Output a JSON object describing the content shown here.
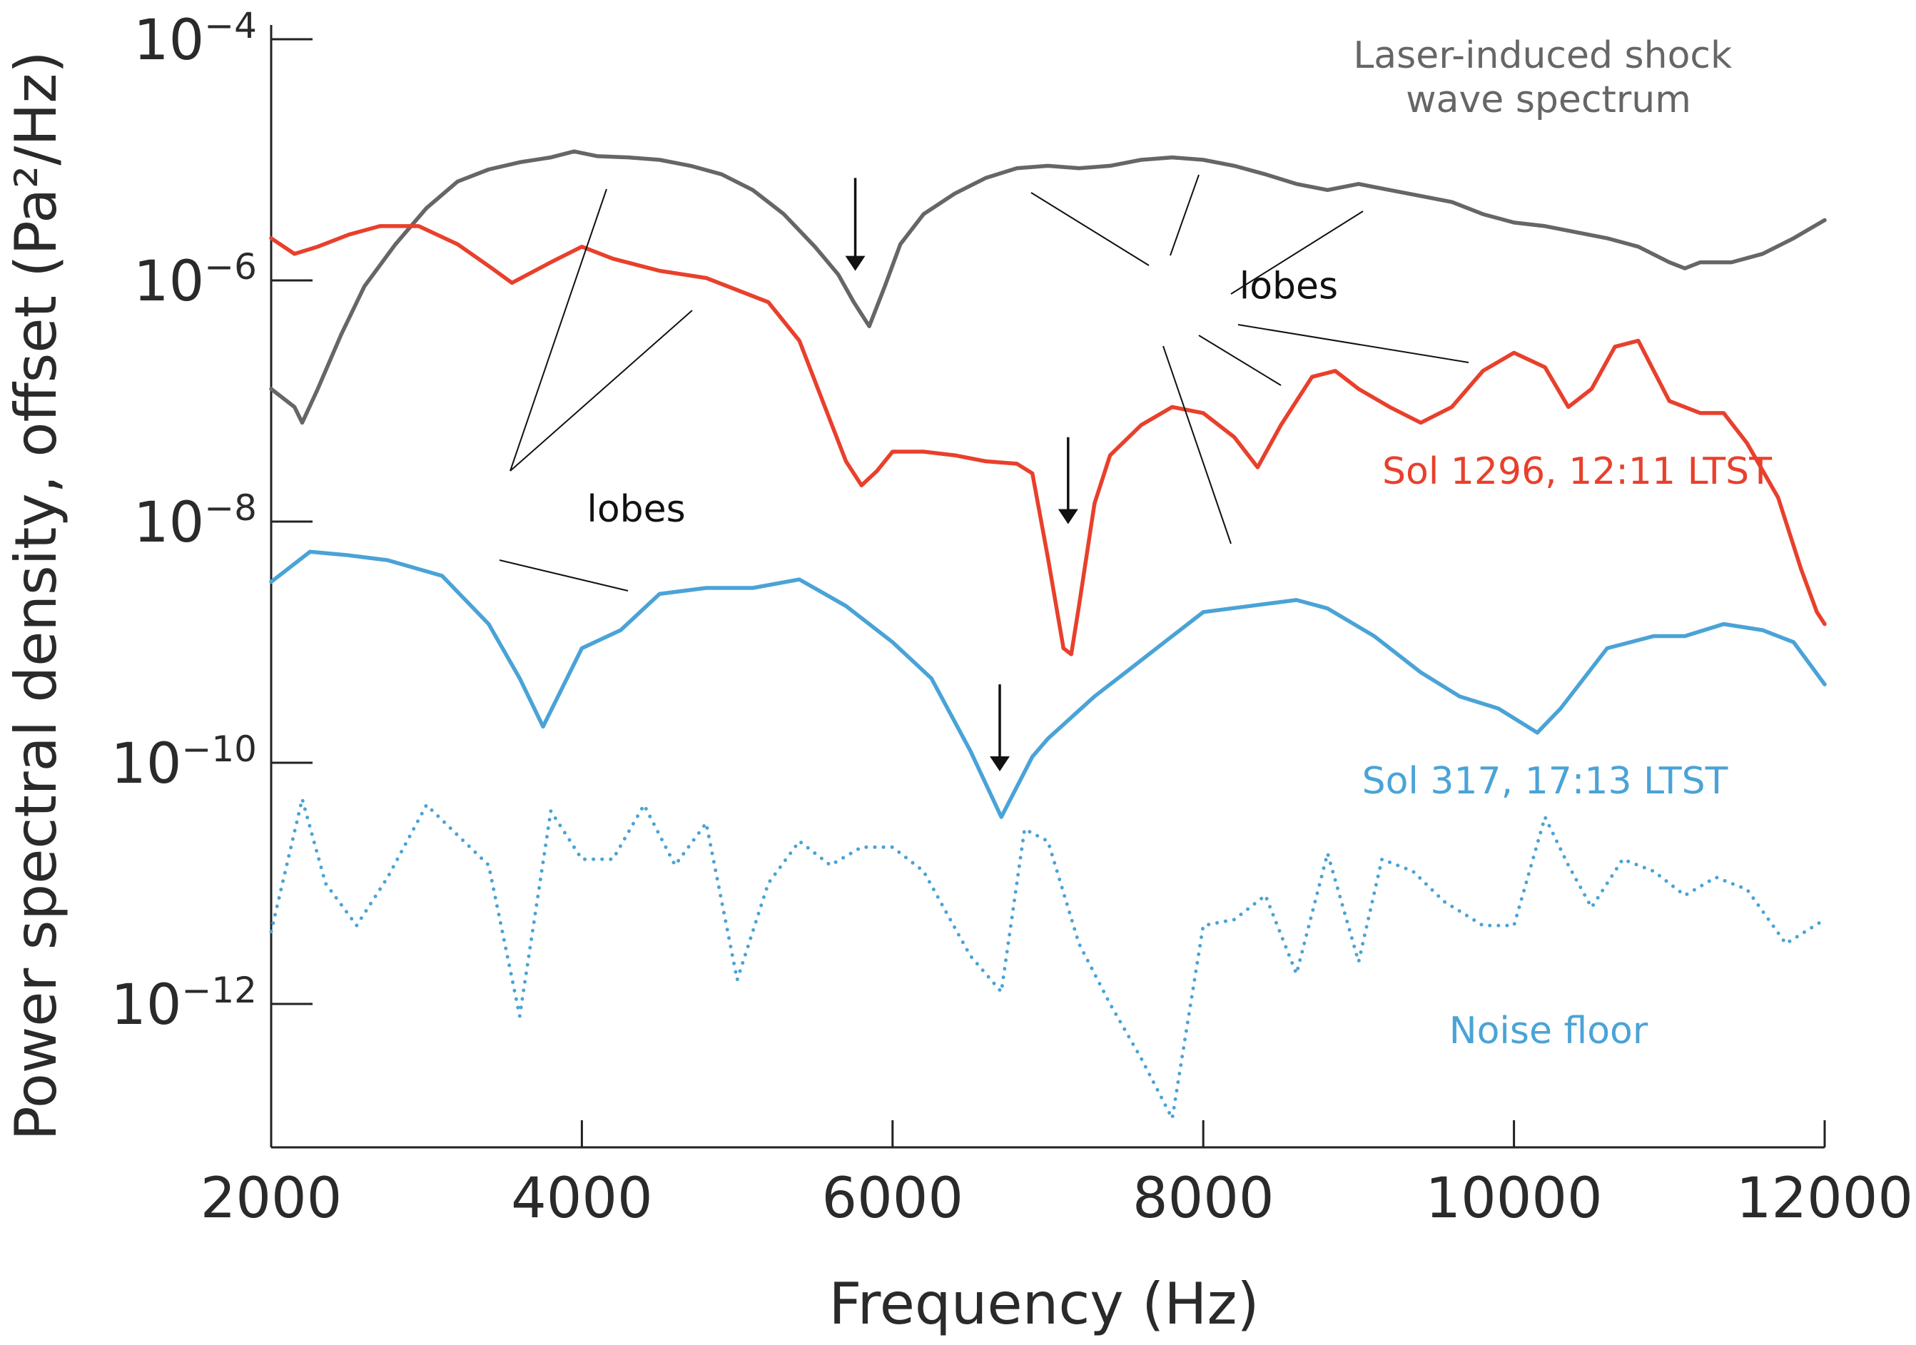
{
  "chart_data": {
    "type": "line",
    "title": "",
    "xlabel": "Frequency (Hz)",
    "ylabel": "Power spectral density, offset (Pa²/Hz)",
    "xlim": [
      2000,
      12000
    ],
    "ylim_log10": [
      -13.4,
      -4
    ],
    "x_ticks": [
      {
        "value": 2000,
        "label": "2000"
      },
      {
        "value": 4000,
        "label": "4000"
      },
      {
        "value": 6000,
        "label": "6000"
      },
      {
        "value": 8000,
        "label": "8000"
      },
      {
        "value": 10000,
        "label": "10000"
      },
      {
        "value": 12000,
        "label": "12000"
      }
    ],
    "y_ticks": [
      {
        "exp": -4,
        "base": "10",
        "sup": "−4"
      },
      {
        "exp": -6,
        "base": "10",
        "sup": "−6"
      },
      {
        "exp": -8,
        "base": "10",
        "sup": "−8"
      },
      {
        "exp": -10,
        "base": "10",
        "sup": "−10"
      },
      {
        "exp": -12,
        "base": "10",
        "sup": "−12"
      }
    ],
    "series": [
      {
        "name": "Laser-induced shock wave spectrum",
        "name_lines": [
          "Laser-induced shock",
          "wave spectrum"
        ],
        "color": "#666666",
        "style": "solid",
        "x": [
          2000,
          2150,
          2200,
          2300,
          2450,
          2600,
          2800,
          3000,
          3200,
          3400,
          3600,
          3800,
          3950,
          4100,
          4300,
          4500,
          4700,
          4900,
          5100,
          5300,
          5500,
          5650,
          5750,
          5850,
          5950,
          6050,
          6200,
          6400,
          6600,
          6800,
          7000,
          7200,
          7400,
          7600,
          7800,
          8000,
          8200,
          8400,
          8600,
          8800,
          9000,
          9200,
          9400,
          9600,
          9800,
          10000,
          10200,
          10400,
          10600,
          10800,
          11000,
          11100,
          11200,
          11400,
          11600,
          11800,
          12000
        ],
        "log10": [
          -6.9,
          -7.05,
          -7.18,
          -6.9,
          -6.45,
          -6.05,
          -5.7,
          -5.4,
          -5.18,
          -5.08,
          -5.02,
          -4.98,
          -4.93,
          -4.97,
          -4.98,
          -5.0,
          -5.05,
          -5.12,
          -5.25,
          -5.45,
          -5.72,
          -5.95,
          -6.18,
          -6.38,
          -6.05,
          -5.7,
          -5.45,
          -5.28,
          -5.15,
          -5.07,
          -5.05,
          -5.07,
          -5.05,
          -5.0,
          -4.98,
          -5.0,
          -5.05,
          -5.12,
          -5.2,
          -5.25,
          -5.2,
          -5.25,
          -5.3,
          -5.35,
          -5.45,
          -5.52,
          -5.55,
          -5.6,
          -5.65,
          -5.72,
          -5.85,
          -5.9,
          -5.85,
          -5.85,
          -5.78,
          -5.65,
          -5.5
        ]
      },
      {
        "name": "Sol 1296, 12:11 LTST",
        "color": "#e8402c",
        "style": "solid",
        "x": [
          2000,
          2150,
          2300,
          2500,
          2700,
          2950,
          3200,
          3400,
          3550,
          3800,
          4000,
          4200,
          4500,
          4800,
          5000,
          5200,
          5400,
          5550,
          5700,
          5800,
          5900,
          6000,
          6200,
          6400,
          6600,
          6800,
          6900,
          7000,
          7100,
          7150,
          7200,
          7300,
          7400,
          7600,
          7800,
          8000,
          8200,
          8350,
          8500,
          8700,
          8850,
          9000,
          9200,
          9400,
          9600,
          9800,
          10000,
          10200,
          10350,
          10500,
          10650,
          10800,
          11000,
          11200,
          11350,
          11500,
          11700,
          11850,
          11950,
          12000
        ],
        "log10": [
          -5.65,
          -5.78,
          -5.72,
          -5.62,
          -5.55,
          -5.55,
          -5.7,
          -5.88,
          -6.02,
          -5.85,
          -5.72,
          -5.82,
          -5.92,
          -5.98,
          -6.08,
          -6.18,
          -6.5,
          -7.0,
          -7.5,
          -7.7,
          -7.58,
          -7.42,
          -7.42,
          -7.45,
          -7.5,
          -7.52,
          -7.6,
          -8.3,
          -9.05,
          -9.1,
          -8.7,
          -7.85,
          -7.45,
          -7.2,
          -7.05,
          -7.1,
          -7.3,
          -7.55,
          -7.2,
          -6.8,
          -6.75,
          -6.9,
          -7.05,
          -7.18,
          -7.05,
          -6.75,
          -6.6,
          -6.72,
          -7.05,
          -6.9,
          -6.55,
          -6.5,
          -7.0,
          -7.1,
          -7.1,
          -7.35,
          -7.8,
          -8.4,
          -8.75,
          -8.85
        ]
      },
      {
        "name": "Sol 317, 17:13 LTST",
        "color": "#4aa3d6",
        "style": "solid",
        "x": [
          2000,
          2250,
          2500,
          2750,
          3100,
          3400,
          3600,
          3750,
          4000,
          4250,
          4500,
          4800,
          5100,
          5400,
          5700,
          6000,
          6250,
          6500,
          6700,
          6900,
          7000,
          7300,
          7500,
          7750,
          8000,
          8300,
          8600,
          8800,
          9100,
          9400,
          9650,
          9900,
          10150,
          10300,
          10600,
          10900,
          11100,
          11350,
          11600,
          11800,
          12000
        ],
        "log10": [
          -8.5,
          -8.25,
          -8.28,
          -8.32,
          -8.45,
          -8.85,
          -9.3,
          -9.7,
          -9.05,
          -8.9,
          -8.6,
          -8.55,
          -8.55,
          -8.48,
          -8.7,
          -9.0,
          -9.3,
          -9.9,
          -10.45,
          -9.95,
          -9.8,
          -9.45,
          -9.25,
          -9.0,
          -8.75,
          -8.7,
          -8.65,
          -8.72,
          -8.95,
          -9.25,
          -9.45,
          -9.55,
          -9.75,
          -9.55,
          -9.05,
          -8.95,
          -8.95,
          -8.85,
          -8.9,
          -9.0,
          -9.35
        ]
      },
      {
        "name": "Noise floor",
        "color": "#4aa3d6",
        "style": "dotted",
        "x": [
          2000,
          2200,
          2350,
          2550,
          2750,
          3000,
          3200,
          3400,
          3600,
          3800,
          4000,
          4200,
          4400,
          4600,
          4800,
          5000,
          5200,
          5400,
          5600,
          5800,
          6000,
          6200,
          6500,
          6700,
          6850,
          7000,
          7200,
          7400,
          7600,
          7800,
          8000,
          8200,
          8400,
          8600,
          8800,
          9000,
          9150,
          9350,
          9550,
          9800,
          10000,
          10200,
          10350,
          10500,
          10700,
          10900,
          11100,
          11300,
          11500,
          11750,
          12000
        ],
        "log10": [
          -11.4,
          -10.3,
          -11.0,
          -11.35,
          -10.95,
          -10.35,
          -10.6,
          -10.85,
          -12.1,
          -10.4,
          -10.8,
          -10.8,
          -10.35,
          -10.85,
          -10.5,
          -11.8,
          -11.0,
          -10.65,
          -10.85,
          -10.7,
          -10.7,
          -10.9,
          -11.6,
          -11.9,
          -10.55,
          -10.65,
          -11.5,
          -12.0,
          -12.45,
          -12.95,
          -11.35,
          -11.3,
          -11.1,
          -11.75,
          -10.75,
          -11.65,
          -10.8,
          -10.9,
          -11.15,
          -11.35,
          -11.35,
          -10.45,
          -10.85,
          -11.2,
          -10.8,
          -10.9,
          -11.1,
          -10.95,
          -11.05,
          -11.5,
          -11.3
        ]
      }
    ],
    "annotations": [
      {
        "type": "text",
        "label": "lobes",
        "x": 4350,
        "log10": -8.0
      },
      {
        "type": "text",
        "label": "lobes",
        "x": 8550,
        "log10": -6.15
      },
      {
        "type": "arrow",
        "x": 5760,
        "from_log10": -5.15,
        "to_log10": -5.9
      },
      {
        "type": "arrow",
        "x": 7130,
        "from_log10": -7.3,
        "to_log10": -8.0
      },
      {
        "type": "arrow",
        "x": 6690,
        "from_log10": -9.35,
        "to_log10": -10.05
      }
    ]
  }
}
